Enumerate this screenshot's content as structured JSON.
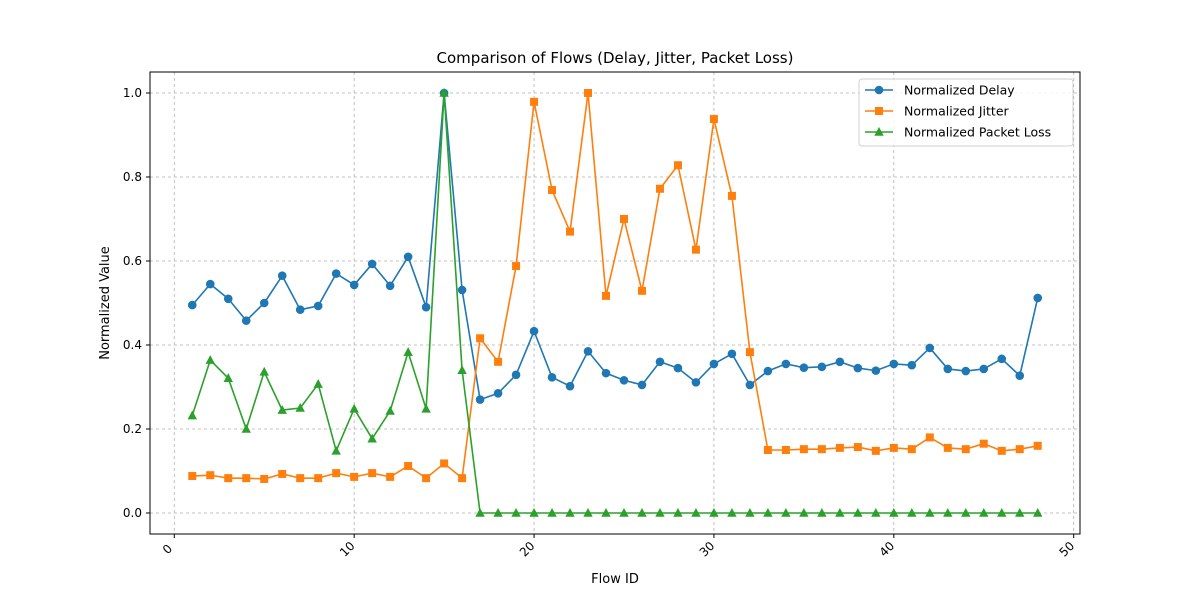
{
  "chart_data": {
    "type": "line",
    "title": "Comparison of Flows (Delay, Jitter, Packet Loss)",
    "xlabel": "Flow ID",
    "ylabel": "Normalized Value",
    "xlim": [
      -1.35,
      50.35
    ],
    "ylim": [
      -0.05,
      1.05
    ],
    "xticks": [
      0,
      10,
      20,
      30,
      40,
      50
    ],
    "yticks": [
      0.0,
      0.2,
      0.4,
      0.6,
      0.8,
      1.0
    ],
    "xtick_labels": [
      "0",
      "10",
      "20",
      "30",
      "40",
      "50"
    ],
    "ytick_labels": [
      "0.0",
      "0.2",
      "0.4",
      "0.6",
      "0.8",
      "1.0"
    ],
    "xtick_rotation": 45,
    "grid": true,
    "legend_position": "top-right",
    "x": [
      1,
      2,
      3,
      4,
      5,
      6,
      7,
      8,
      9,
      10,
      11,
      12,
      13,
      14,
      15,
      16,
      17,
      18,
      19,
      20,
      21,
      22,
      23,
      24,
      25,
      26,
      27,
      28,
      29,
      30,
      31,
      32,
      33,
      34,
      35,
      36,
      37,
      38,
      39,
      40,
      41,
      42,
      43,
      44,
      45,
      46,
      47,
      48
    ],
    "series": [
      {
        "name": "Normalized Delay",
        "color": "#1f77b4",
        "marker": "circle",
        "values": [
          0.495,
          0.545,
          0.51,
          0.458,
          0.5,
          0.565,
          0.484,
          0.493,
          0.57,
          0.543,
          0.593,
          0.541,
          0.61,
          0.49,
          1.0,
          0.531,
          0.27,
          0.285,
          0.329,
          0.433,
          0.323,
          0.302,
          0.385,
          0.333,
          0.316,
          0.305,
          0.36,
          0.345,
          0.311,
          0.355,
          0.379,
          0.305,
          0.338,
          0.355,
          0.346,
          0.348,
          0.36,
          0.345,
          0.339,
          0.355,
          0.352,
          0.393,
          0.343,
          0.338,
          0.343,
          0.367,
          0.327,
          0.512
        ]
      },
      {
        "name": "Normalized Jitter",
        "color": "#ff7f0e",
        "marker": "square",
        "values": [
          0.088,
          0.09,
          0.083,
          0.083,
          0.081,
          0.093,
          0.083,
          0.083,
          0.095,
          0.086,
          0.095,
          0.086,
          0.112,
          0.083,
          0.118,
          0.083,
          0.416,
          0.36,
          0.588,
          0.979,
          0.769,
          0.67,
          1.0,
          0.517,
          0.7,
          0.529,
          0.772,
          0.828,
          0.627,
          0.938,
          0.755,
          0.383,
          0.15,
          0.15,
          0.152,
          0.152,
          0.155,
          0.157,
          0.148,
          0.155,
          0.152,
          0.18,
          0.155,
          0.152,
          0.165,
          0.148,
          0.152,
          0.16
        ]
      },
      {
        "name": "Normalized Packet Loss",
        "color": "#2ca02c",
        "marker": "triangle",
        "values": [
          0.232,
          0.364,
          0.321,
          0.2,
          0.336,
          0.245,
          0.25,
          0.307,
          0.148,
          0.248,
          0.177,
          0.243,
          0.383,
          0.248,
          1.0,
          0.34,
          0.0,
          0.0,
          0.0,
          0.0,
          0.0,
          0.0,
          0.0,
          0.0,
          0.0,
          0.0,
          0.0,
          0.0,
          0.0,
          0.0,
          0.0,
          0.0,
          0.0,
          0.0,
          0.0,
          0.0,
          0.0,
          0.0,
          0.0,
          0.0,
          0.0,
          0.0,
          0.0,
          0.0,
          0.0,
          0.0,
          0.0,
          0.0
        ]
      }
    ]
  }
}
